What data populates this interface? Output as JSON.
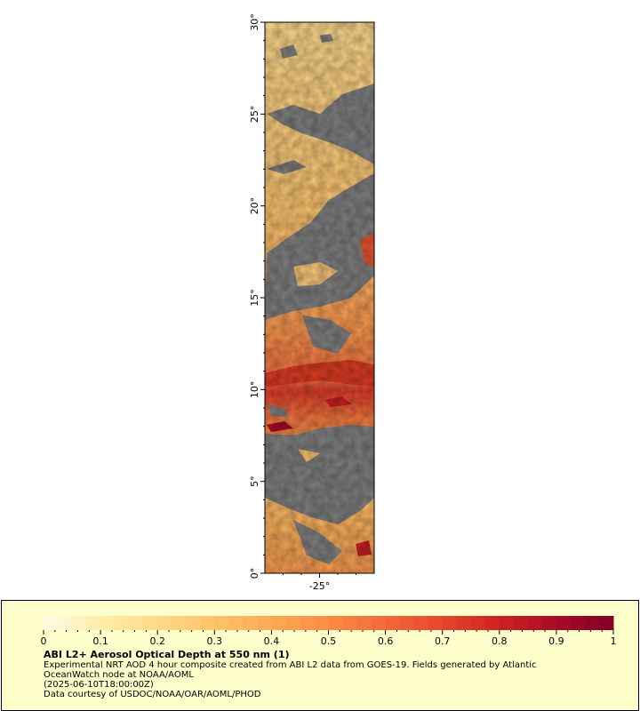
{
  "map": {
    "y_axis_labels": [
      "0°",
      "5°",
      "10°",
      "15°",
      "20°",
      "25°",
      "30°"
    ],
    "y_axis_values": [
      0,
      5,
      10,
      15,
      20,
      25,
      30
    ],
    "x_axis_labels": [
      "-25°"
    ],
    "x_axis_values": [
      -25
    ],
    "lon_range": [
      -28.0,
      -22.0
    ],
    "lat_range": [
      0,
      30
    ],
    "no_data_color": "#808080"
  },
  "legend": {
    "tick_labels": [
      "0",
      "0.1",
      "0.2",
      "0.3",
      "0.4",
      "0.5",
      "0.6",
      "0.7",
      "0.8",
      "0.9",
      "1"
    ],
    "range": [
      0,
      1
    ],
    "colors": [
      "#fffbe8",
      "#ffeea8",
      "#ffd98a",
      "#fdc36a",
      "#fca955",
      "#fb8c46",
      "#f26a3a",
      "#e6452c",
      "#cf2222",
      "#a80b28",
      "#800026"
    ],
    "title": "ABI L2+ Aerosol Optical Depth at 550 nm (1)",
    "line1": "Experimental NRT AOD 4 hour composite created from ABI L2 data from GOES-19. Fields generated by Atlantic",
    "line2": "OceanWatch node at NOAA/AOML",
    "line3": "(2025-06-10T18:00:00Z)",
    "line4": "Data courtesy of USDOC/NOAA/OAR/AOML/PHOD"
  }
}
